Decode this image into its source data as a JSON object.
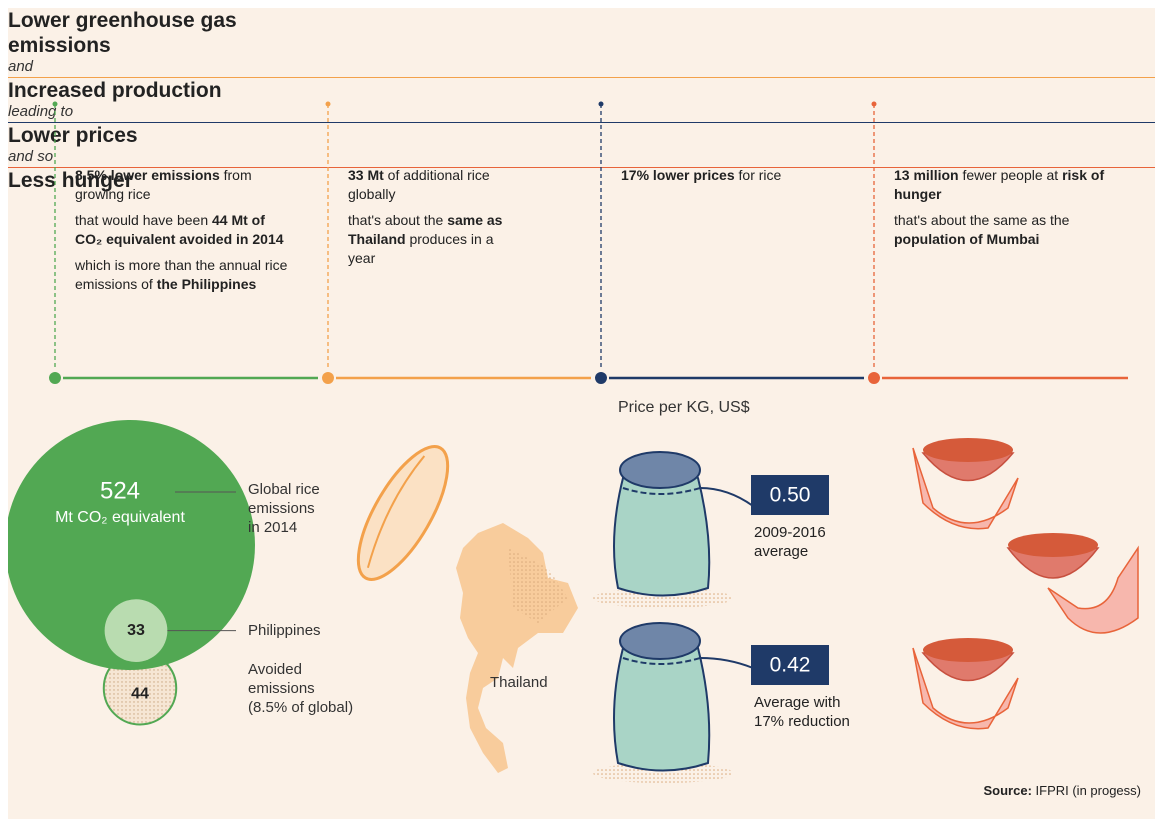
{
  "columns": [
    {
      "heading": "Lower greenhouse gas emissions",
      "color": "#52a853",
      "paragraphs": [
        [
          {
            "strong": "8.5% lower emissions"
          },
          {
            "text": " from growing rice"
          }
        ],
        [
          {
            "text": "that would have been "
          },
          {
            "strong": "44 Mt of CO₂ equivalent avoided in 2014"
          }
        ],
        [
          {
            "text": "which is more than the annual rice emissions of "
          },
          {
            "strong": "the Philippines"
          }
        ]
      ]
    },
    {
      "connector": "and",
      "heading": "Increased production",
      "color": "#f3a14b",
      "paragraphs": [
        [
          {
            "strong": "33 Mt"
          },
          {
            "text": " of additional rice globally"
          }
        ],
        [
          {
            "text": "that's about the "
          },
          {
            "strong": "same as Thailand"
          },
          {
            "text": " produces in a year"
          }
        ]
      ]
    },
    {
      "connector": "leading to",
      "heading": "Lower prices",
      "color": "#1f3a68",
      "paragraphs": [
        [
          {
            "strong": "17% lower prices"
          },
          {
            "text": " for rice"
          }
        ]
      ]
    },
    {
      "connector": "and so",
      "heading": "Less hunger",
      "color": "#e8643a",
      "paragraphs": [
        [
          {
            "strong": "13 million"
          },
          {
            "text": " fewer people at "
          },
          {
            "strong": "risk of hunger"
          }
        ],
        [
          {
            "text": "that's about the same as the "
          },
          {
            "strong": "population of Mumbai"
          }
        ]
      ]
    }
  ],
  "circles": [
    {
      "value": 524,
      "unit": "Mt CO₂ equivalent",
      "label": [
        "Global rice",
        "emissions",
        "in 2014"
      ]
    },
    {
      "value": 33,
      "label": [
        "Philippines"
      ]
    },
    {
      "value": 44,
      "label": [
        "Avoided",
        "emissions",
        "(8.5% of global)"
      ]
    }
  ],
  "map_label": "Thailand",
  "price_title": "Price per KG, US$",
  "prices": [
    {
      "value": {
        "value": 0.5,
        "label": "0.50"
      },
      "caption": [
        "2009-2016",
        "average"
      ]
    },
    {
      "value": {
        "value": 0.42,
        "label": "0.42"
      },
      "caption": [
        "Average with",
        "17% reduction"
      ]
    }
  ],
  "source": [
    {
      "strong": "Source:"
    },
    {
      "text": " IFPRI (in progess)"
    }
  ]
}
